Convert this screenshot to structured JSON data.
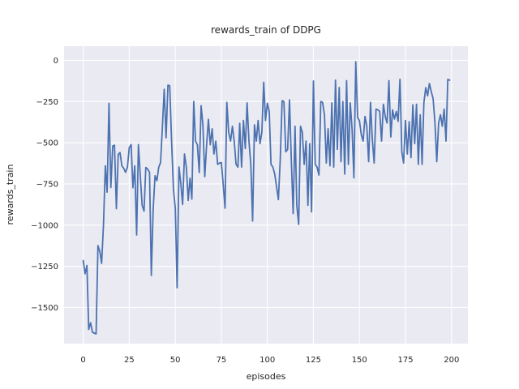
{
  "chart_data": {
    "type": "line",
    "title": "rewards_train of DDPG",
    "xlabel": "episodes",
    "ylabel": "rewards_train",
    "x_ticks": [
      0,
      25,
      50,
      75,
      100,
      125,
      150,
      175,
      200
    ],
    "y_ticks": [
      0,
      -250,
      -500,
      -750,
      -1000,
      -1250,
      -1500
    ],
    "xlim": [
      -10.4,
      208.9
    ],
    "ylim": [
      -1719,
      86
    ],
    "grid": true,
    "legend_position": "none",
    "plot_background": "#EAEAF2",
    "grid_color": "#FFFFFF",
    "text_color": "#262626",
    "series": [
      {
        "name": "rewards_train",
        "color": "#4C72B0",
        "x_start": 0,
        "x_step": 1,
        "values": [
          -1215,
          -1295,
          -1245,
          -1633,
          -1592,
          -1650,
          -1655,
          -1660,
          -1124,
          -1160,
          -1232,
          -1000,
          -640,
          -800,
          -260,
          -772,
          -520,
          -515,
          -900,
          -570,
          -560,
          -640,
          -655,
          -680,
          -650,
          -530,
          -511,
          -773,
          -640,
          -1060,
          -511,
          -700,
          -880,
          -915,
          -650,
          -660,
          -680,
          -1305,
          -900,
          -700,
          -730,
          -650,
          -620,
          -400,
          -175,
          -470,
          -150,
          -155,
          -490,
          -781,
          -900,
          -1380,
          -647,
          -750,
          -874,
          -568,
          -648,
          -850,
          -715,
          -842,
          -250,
          -490,
          -512,
          -681,
          -275,
          -391,
          -706,
          -512,
          -358,
          -512,
          -415,
          -568,
          -490,
          -631,
          -623,
          -620,
          -750,
          -897,
          -255,
          -437,
          -490,
          -400,
          -490,
          -631,
          -648,
          -382,
          -648,
          -365,
          -535,
          -258,
          -490,
          -631,
          -975,
          -391,
          -490,
          -365,
          -505,
          -437,
          -133,
          -365,
          -260,
          -310,
          -631,
          -648,
          -690,
          -770,
          -845,
          -600,
          -245,
          -250,
          -555,
          -540,
          -240,
          -600,
          -930,
          -400,
          -880,
          -995,
          -400,
          -437,
          -631,
          -490,
          -880,
          -505,
          -920,
          -125,
          -631,
          -648,
          -696,
          -250,
          -255,
          -330,
          -623,
          -415,
          -640,
          -258,
          -648,
          -120,
          -540,
          -165,
          -615,
          -250,
          -690,
          -123,
          -631,
          -258,
          -420,
          -713,
          -8,
          -347,
          -365,
          -450,
          -490,
          -340,
          -400,
          -615,
          -255,
          -480,
          -623,
          -296,
          -300,
          -310,
          -490,
          -266,
          -340,
          -380,
          -123,
          -465,
          -300,
          -356,
          -310,
          -370,
          -115,
          -555,
          -623,
          -365,
          -568,
          -372,
          -590,
          -270,
          -505,
          -266,
          -631,
          -330,
          -631,
          -258,
          -166,
          -215,
          -140,
          -190,
          -232,
          -382,
          -615,
          -380,
          -330,
          -400,
          -296,
          -490,
          -115,
          -120
        ]
      }
    ]
  }
}
